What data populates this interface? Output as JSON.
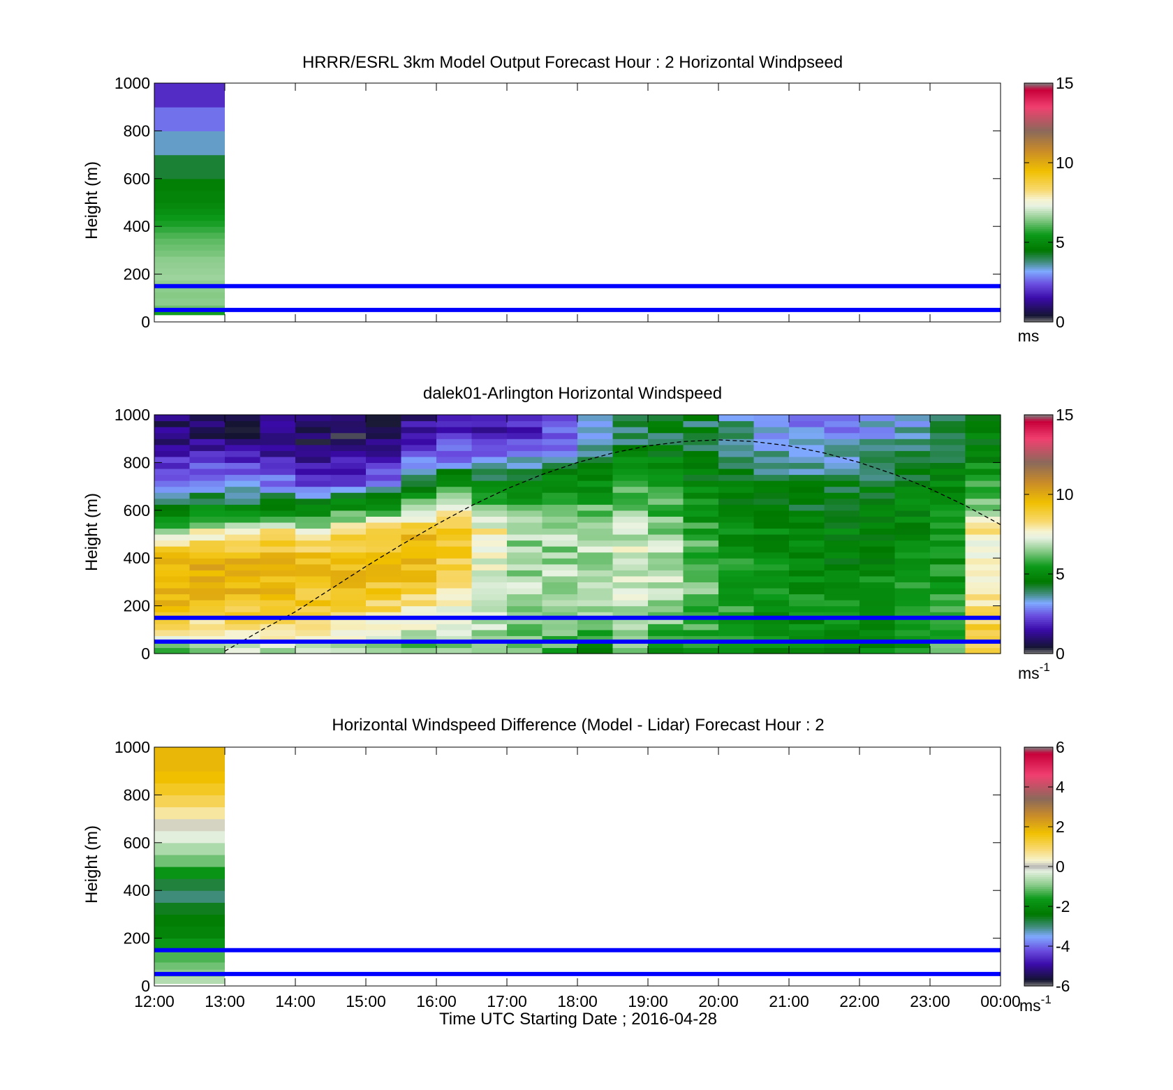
{
  "colors": {
    "blue_lines": "#0000ff",
    "speed_cmap": [
      {
        "v": 0.0,
        "c": "#7f7f7f"
      },
      {
        "v": 0.4,
        "c": "#141432"
      },
      {
        "v": 1.5,
        "c": "#3a0aa8"
      },
      {
        "v": 2.4,
        "c": "#6a4ee0"
      },
      {
        "v": 3.2,
        "c": "#7faaff"
      },
      {
        "v": 3.8,
        "c": "#3f8c7a"
      },
      {
        "v": 4.5,
        "c": "#007800"
      },
      {
        "v": 5.5,
        "c": "#0c9a1a"
      },
      {
        "v": 6.5,
        "c": "#8ccc8c"
      },
      {
        "v": 7.3,
        "c": "#e8f2e2"
      },
      {
        "v": 7.7,
        "c": "#f6f3d0"
      },
      {
        "v": 8.3,
        "c": "#f8d970"
      },
      {
        "v": 9.5,
        "c": "#f0c000"
      },
      {
        "v": 10.8,
        "c": "#c88a2a"
      },
      {
        "v": 12.0,
        "c": "#8b6a5a"
      },
      {
        "v": 13.5,
        "c": "#f04070"
      },
      {
        "v": 14.6,
        "c": "#c8003a"
      },
      {
        "v": 15.0,
        "c": "#7f7f7f"
      }
    ],
    "diff_cmap": [
      {
        "v": -6.0,
        "c": "#7f7f7f"
      },
      {
        "v": -5.7,
        "c": "#141432"
      },
      {
        "v": -4.9,
        "c": "#3a0aa8"
      },
      {
        "v": -4.2,
        "c": "#6a4ee0"
      },
      {
        "v": -3.5,
        "c": "#7faaff"
      },
      {
        "v": -3.0,
        "c": "#3f8c7a"
      },
      {
        "v": -2.4,
        "c": "#007800"
      },
      {
        "v": -1.6,
        "c": "#0c9a1a"
      },
      {
        "v": -0.9,
        "c": "#8ccc8c"
      },
      {
        "v": -0.2,
        "c": "#e8f2e2"
      },
      {
        "v": 0.0,
        "c": "#b4b4b4"
      },
      {
        "v": 0.3,
        "c": "#f6f3d0"
      },
      {
        "v": 0.9,
        "c": "#f8d970"
      },
      {
        "v": 1.7,
        "c": "#f0c000"
      },
      {
        "v": 2.6,
        "c": "#c88a2a"
      },
      {
        "v": 3.4,
        "c": "#8b6a5a"
      },
      {
        "v": 4.6,
        "c": "#f04070"
      },
      {
        "v": 5.7,
        "c": "#c8003a"
      },
      {
        "v": 6.0,
        "c": "#7f7f7f"
      }
    ]
  },
  "chart_data": [
    {
      "type": "heatmap",
      "title": "HRRR/ESRL 3km Model Output   Forecast Hour : 2 Horizontal Windpseed",
      "xlabel": "",
      "ylabel": "Height (m)",
      "xlim": [
        12,
        24
      ],
      "ylim": [
        0,
        1000
      ],
      "yticks": [
        "0",
        "200",
        "400",
        "600",
        "800",
        "1000"
      ],
      "xticks_shown": false,
      "colorbar": {
        "range": [
          0,
          15
        ],
        "ticks": [
          "0",
          "5",
          "10",
          "15"
        ],
        "units": "ms"
      },
      "model_profile": {
        "time_start": 12,
        "time_end": 13,
        "heights_m": [
          30,
          50,
          70,
          100,
          125,
          150,
          175,
          200,
          225,
          250,
          275,
          300,
          325,
          350,
          375,
          400,
          425,
          450,
          475,
          500,
          550,
          600,
          700,
          800,
          900,
          1000
        ],
        "speeds": [
          5.2,
          5.9,
          6.6,
          6.4,
          6.5,
          6.5,
          6.6,
          6.7,
          6.5,
          6.6,
          6.4,
          6.3,
          6.2,
          6.1,
          5.9,
          5.7,
          5.5,
          5.3,
          5.1,
          4.9,
          4.8,
          4.6,
          3.8,
          3.1,
          2.3,
          1.6
        ]
      },
      "reference_heights_m": [
        50,
        150
      ]
    },
    {
      "type": "heatmap",
      "title": "dalek01-Arlington  Horizontal Windspeed",
      "xlabel": "",
      "ylabel": "Height (m)",
      "xlim": [
        12,
        24
      ],
      "ylim": [
        0,
        1000
      ],
      "yticks": [
        "0",
        "200",
        "400",
        "600",
        "800",
        "1000"
      ],
      "xticks_shown": false,
      "colorbar": {
        "range": [
          0,
          15
        ],
        "ticks": [
          "0",
          "5",
          "10",
          "15"
        ],
        "units": "ms",
        "units_exp": "-1"
      },
      "lidar_profiles": {
        "height_breaks_m": [
          0,
          100,
          200,
          300,
          400,
          500,
          600,
          700,
          800,
          900,
          1000
        ],
        "profiles": [
          {
            "t": 12.0,
            "s": [
              6.0,
              9.2,
              9.6,
              9.8,
              9.6,
              6.5,
              4.6,
              3.3,
              2.0,
              1.0
            ]
          },
          {
            "t": 12.5,
            "s": [
              6.5,
              8.0,
              9.5,
              9.8,
              9.8,
              7.5,
              4.8,
              3.2,
              2.0,
              1.0
            ]
          },
          {
            "t": 13.0,
            "s": [
              7.0,
              8.0,
              9.4,
              9.7,
              9.7,
              7.0,
              4.5,
              3.0,
              1.8,
              0.8
            ]
          },
          {
            "t": 13.5,
            "s": [
              6.5,
              8.5,
              9.2,
              9.6,
              9.5,
              8.0,
              4.8,
              3.0,
              1.9,
              0.9
            ]
          },
          {
            "t": 14.0,
            "s": [
              6.6,
              8.3,
              9.1,
              9.3,
              9.3,
              7.2,
              4.6,
              2.2,
              1.2,
              0.7
            ]
          },
          {
            "t": 14.5,
            "s": [
              6.8,
              8.0,
              9.0,
              9.4,
              9.3,
              8.2,
              5.3,
              2.6,
              1.5,
              0.6
            ]
          },
          {
            "t": 15.0,
            "s": [
              6.2,
              7.6,
              8.7,
              9.2,
              9.4,
              9.1,
              5.5,
              3.0,
              1.6,
              0.7
            ]
          },
          {
            "t": 15.5,
            "s": [
              6.0,
              7.2,
              8.2,
              9.2,
              9.5,
              9.4,
              6.5,
              4.0,
              2.6,
              1.3
            ]
          },
          {
            "t": 16.0,
            "s": [
              6.3,
              7.5,
              7.8,
              8.3,
              9.0,
              9.2,
              7.2,
              5.0,
              3.0,
              1.8
            ]
          },
          {
            "t": 16.5,
            "s": [
              6.4,
              6.8,
              7.3,
              7.0,
              7.5,
              7.8,
              6.0,
              4.8,
              3.0,
              1.5
            ]
          },
          {
            "t": 17.0,
            "s": [
              6.0,
              6.4,
              6.7,
              6.7,
              6.5,
              6.8,
              6.0,
              4.8,
              3.2,
              2.0
            ]
          },
          {
            "t": 17.5,
            "s": [
              5.8,
              6.5,
              6.3,
              6.8,
              6.5,
              7.0,
              6.5,
              5.0,
              3.6,
              2.4
            ]
          },
          {
            "t": 18.0,
            "s": [
              4.8,
              6.2,
              6.6,
              6.7,
              6.8,
              6.8,
              6.0,
              5.0,
              4.2,
              3.2
            ]
          },
          {
            "t": 18.5,
            "s": [
              6.0,
              6.7,
              7.0,
              7.2,
              7.3,
              7.0,
              6.5,
              5.6,
              4.8,
              4.0
            ]
          },
          {
            "t": 19.0,
            "s": [
              5.5,
              6.2,
              6.8,
              7.0,
              6.9,
              6.5,
              6.0,
              5.5,
              4.8,
              4.2
            ]
          },
          {
            "t": 19.5,
            "s": [
              5.7,
              5.8,
              6.2,
              6.3,
              6.0,
              5.8,
              5.2,
              4.8,
              4.5,
              4.2
            ]
          },
          {
            "t": 20.0,
            "s": [
              5.1,
              5.6,
              5.7,
              5.5,
              5.2,
              5.1,
              4.9,
              4.6,
              4.3,
              3.6
            ]
          },
          {
            "t": 20.5,
            "s": [
              4.9,
              5.3,
              5.4,
              5.2,
              5.1,
              5.0,
              4.7,
              4.4,
              3.8,
              3.1
            ]
          },
          {
            "t": 21.0,
            "s": [
              4.7,
              5.1,
              5.2,
              5.0,
              4.9,
              4.8,
              4.5,
              4.2,
              3.6,
              3.0
            ]
          },
          {
            "t": 21.5,
            "s": [
              4.8,
              5.0,
              5.1,
              4.9,
              4.9,
              4.7,
              4.4,
              4.1,
              3.5,
              2.9
            ]
          },
          {
            "t": 22.0,
            "s": [
              4.9,
              5.2,
              5.4,
              5.1,
              5.0,
              4.8,
              4.6,
              4.3,
              3.8,
              3.2
            ]
          },
          {
            "t": 22.5,
            "s": [
              5.5,
              5.4,
              5.5,
              5.4,
              5.1,
              5.0,
              4.8,
              4.6,
              4.1,
              3.5
            ]
          },
          {
            "t": 23.0,
            "s": [
              6.2,
              5.8,
              5.6,
              5.5,
              5.3,
              5.2,
              5.0,
              4.8,
              4.4,
              3.8
            ]
          },
          {
            "t": 23.5,
            "s": [
              8.4,
              8.6,
              8.0,
              7.8,
              7.6,
              8.0,
              6.5,
              5.6,
              5.0,
              4.6
            ]
          }
        ]
      },
      "boundary_layer_curve": {
        "x": [
          13.0,
          13.5,
          14.0,
          14.5,
          15.0,
          15.5,
          16.0,
          16.5,
          17.0,
          17.5,
          18.0,
          18.5,
          19.0,
          19.5,
          20.0,
          20.5,
          21.0,
          21.5,
          22.0,
          22.5,
          23.0,
          23.5,
          24.0
        ],
        "y": [
          10,
          95,
          175,
          270,
          365,
          455,
          540,
          620,
          690,
          750,
          800,
          840,
          870,
          888,
          895,
          888,
          870,
          840,
          800,
          750,
          690,
          620,
          540
        ]
      },
      "reference_heights_m": [
        50,
        150
      ]
    },
    {
      "type": "heatmap",
      "title": "Horizontal Windspeed Difference (Model - Lidar) Forecast Hour : 2",
      "xlabel": "Time UTC  Starting Date ; 2016-04-28",
      "ylabel": "Height (m)",
      "xlim": [
        12,
        24
      ],
      "ylim": [
        0,
        1000
      ],
      "xticks": [
        "12:00",
        "13:00",
        "14:00",
        "15:00",
        "16:00",
        "17:00",
        "18:00",
        "19:00",
        "20:00",
        "21:00",
        "22:00",
        "23:00",
        "00:00"
      ],
      "yticks": [
        "0",
        "200",
        "400",
        "600",
        "800",
        "1000"
      ],
      "colorbar": {
        "range": [
          -6,
          6
        ],
        "ticks": [
          "-6",
          "-4",
          "-2",
          "0",
          "2",
          "4",
          "6"
        ],
        "units": "ms",
        "units_exp": "-1"
      },
      "model_profile": {
        "time_start": 12,
        "time_end": 13,
        "heights_m": [
          10,
          40,
          70,
          100,
          150,
          200,
          250,
          300,
          350,
          400,
          450,
          500,
          550,
          600,
          650,
          700,
          750,
          800,
          850,
          900,
          1000
        ],
        "diffs": [
          -0.4,
          -0.8,
          -1.0,
          -1.1,
          -1.4,
          -2.0,
          -2.2,
          -2.3,
          -2.8,
          -3.2,
          -2.2,
          -1.3,
          -0.8,
          -0.5,
          0.0,
          0.3,
          0.9,
          1.3,
          1.6,
          1.8,
          1.9
        ]
      },
      "reference_heights_m": [
        50,
        150
      ]
    }
  ]
}
